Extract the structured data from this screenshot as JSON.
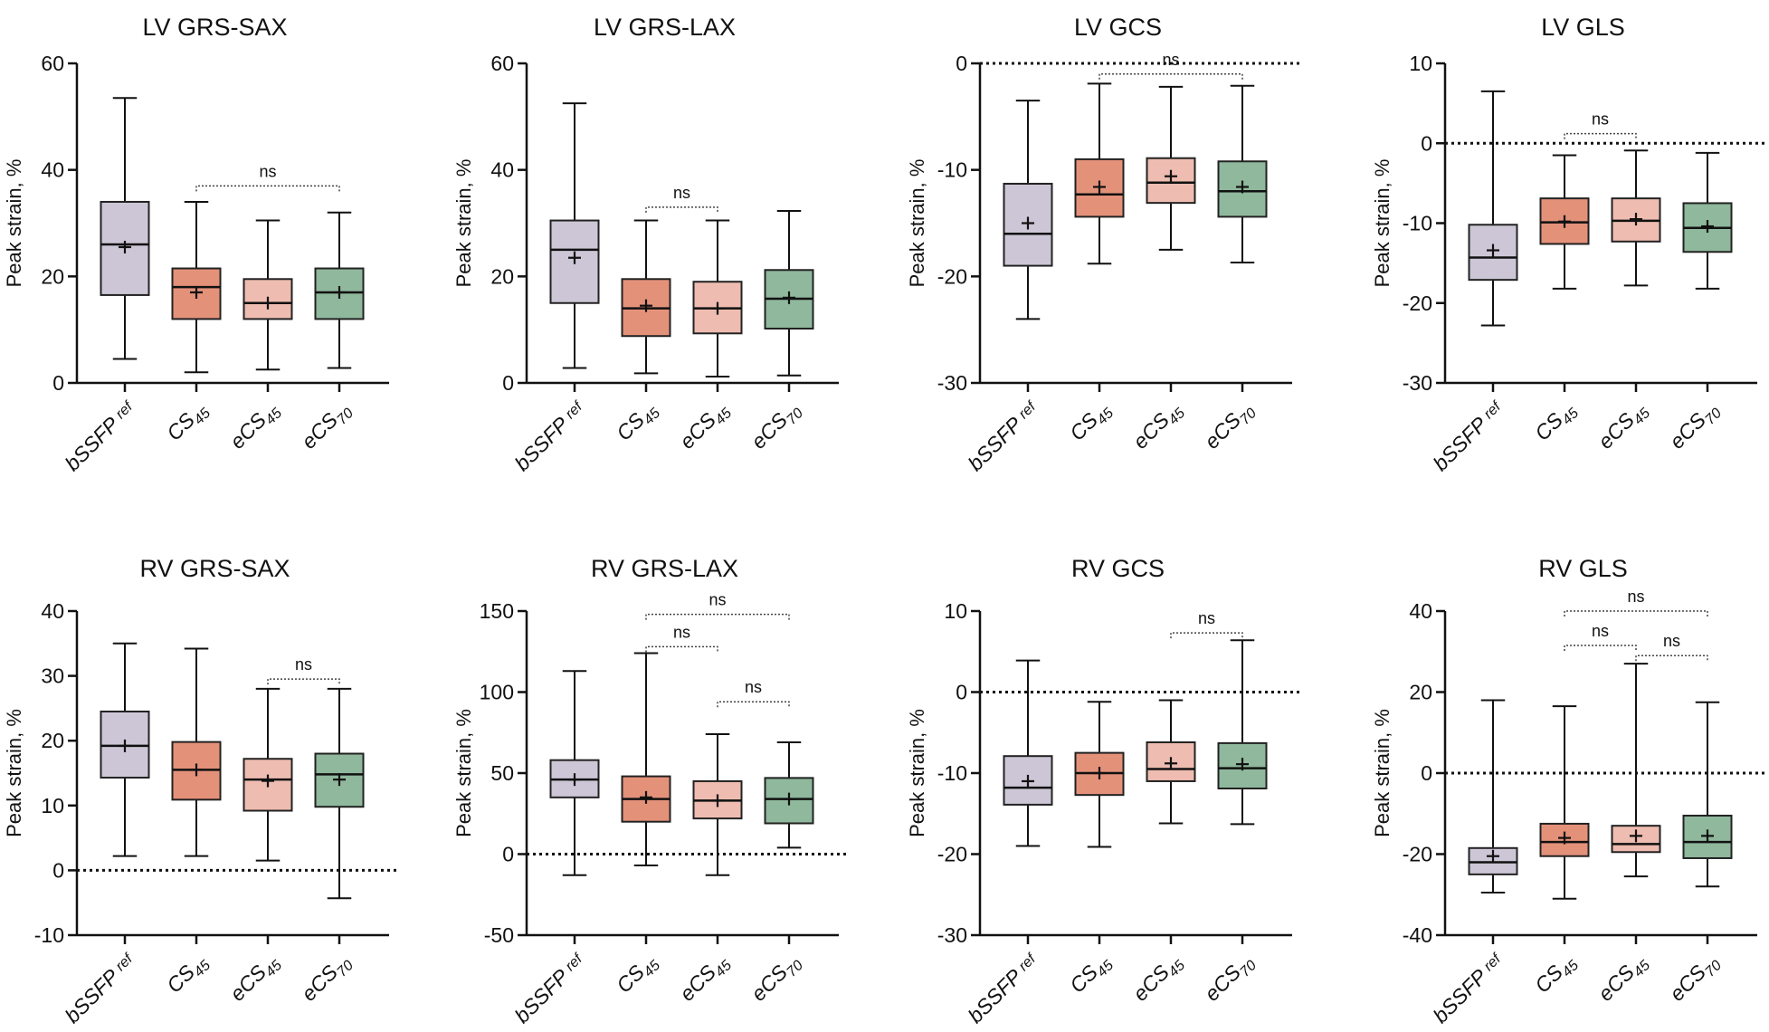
{
  "chart_data": [
    {
      "type": "box",
      "title": "LV GRS-SAX",
      "ylabel": "Peak strain, %",
      "ylim": [
        0,
        60
      ],
      "yticks": [
        0,
        20,
        40,
        60
      ],
      "refline": null,
      "categories": [
        {
          "main": "bSSFP",
          "sub": "ref"
        },
        {
          "main": "CS",
          "sub": "45"
        },
        {
          "main": "eCS",
          "sub": "45"
        },
        {
          "main": "eCS",
          "sub": "70"
        }
      ],
      "series": [
        {
          "min": 4.5,
          "q1": 16.5,
          "median": 26,
          "q3": 34,
          "max": 53.5,
          "mean": 25.5
        },
        {
          "min": 2,
          "q1": 12,
          "median": 18,
          "q3": 21.5,
          "max": 34,
          "mean": 17
        },
        {
          "min": 2.5,
          "q1": 12,
          "median": 15,
          "q3": 19.5,
          "max": 30.5,
          "mean": 15
        },
        {
          "min": 2.8,
          "q1": 12,
          "median": 17,
          "q3": 21.5,
          "max": 32,
          "mean": 17
        }
      ],
      "annotations": [
        {
          "from": 1,
          "to": 3,
          "y": 37,
          "text": "ns"
        }
      ]
    },
    {
      "type": "box",
      "title": "LV GRS-LAX",
      "ylabel": "Peak strain, %",
      "ylim": [
        0,
        60
      ],
      "yticks": [
        0,
        20,
        40,
        60
      ],
      "refline": null,
      "categories": [
        {
          "main": "bSSFP",
          "sub": "ref"
        },
        {
          "main": "CS",
          "sub": "45"
        },
        {
          "main": "eCS",
          "sub": "45"
        },
        {
          "main": "eCS",
          "sub": "70"
        }
      ],
      "series": [
        {
          "min": 2.8,
          "q1": 15,
          "median": 25,
          "q3": 30.5,
          "max": 52.5,
          "mean": 23.5
        },
        {
          "min": 1.8,
          "q1": 8.8,
          "median": 14,
          "q3": 19.5,
          "max": 30.5,
          "mean": 14.5
        },
        {
          "min": 1.2,
          "q1": 9.3,
          "median": 14,
          "q3": 19,
          "max": 30.5,
          "mean": 14
        },
        {
          "min": 1.4,
          "q1": 10.2,
          "median": 15.8,
          "q3": 21.2,
          "max": 32.3,
          "mean": 16
        }
      ],
      "annotations": [
        {
          "from": 1,
          "to": 2,
          "y": 33,
          "text": "ns"
        }
      ]
    },
    {
      "type": "box",
      "title": "LV GCS",
      "ylabel": "Peak strain, %",
      "ylim": [
        -30,
        0
      ],
      "yticks": [
        -30,
        -20,
        -10,
        0
      ],
      "refline": 0,
      "categories": [
        {
          "main": "bSSFP",
          "sub": "ref"
        },
        {
          "main": "CS",
          "sub": "45"
        },
        {
          "main": "eCS",
          "sub": "45"
        },
        {
          "main": "eCS",
          "sub": "70"
        }
      ],
      "series": [
        {
          "min": -24,
          "q1": -19,
          "median": -16,
          "q3": -11.3,
          "max": -3.5,
          "mean": -15
        },
        {
          "min": -18.8,
          "q1": -14.4,
          "median": -12.3,
          "q3": -9,
          "max": -1.9,
          "mean": -11.6
        },
        {
          "min": -17.5,
          "q1": -13.1,
          "median": -11.2,
          "q3": -8.9,
          "max": -2.2,
          "mean": -10.6
        },
        {
          "min": -18.7,
          "q1": -14.4,
          "median": -12,
          "q3": -9.2,
          "max": -2.1,
          "mean": -11.6
        }
      ],
      "annotations": [
        {
          "from": 1,
          "to": 3,
          "y": -1,
          "text": "ns"
        }
      ]
    },
    {
      "type": "box",
      "title": "LV GLS",
      "ylabel": "Peak strain, %",
      "ylim": [
        -30,
        10
      ],
      "yticks": [
        -30,
        -20,
        -10,
        0,
        10
      ],
      "refline": 0,
      "categories": [
        {
          "main": "bSSFP",
          "sub": "ref"
        },
        {
          "main": "CS",
          "sub": "45"
        },
        {
          "main": "eCS",
          "sub": "45"
        },
        {
          "main": "eCS",
          "sub": "70"
        }
      ],
      "series": [
        {
          "min": -22.8,
          "q1": -17.1,
          "median": -14.3,
          "q3": -10.2,
          "max": 6.5,
          "mean": -13.4
        },
        {
          "min": -18.2,
          "q1": -12.6,
          "median": -9.9,
          "q3": -6.9,
          "max": -1.5,
          "mean": -9.8
        },
        {
          "min": -17.8,
          "q1": -12.3,
          "median": -9.7,
          "q3": -6.9,
          "max": -0.9,
          "mean": -9.5
        },
        {
          "min": -18.2,
          "q1": -13.6,
          "median": -10.6,
          "q3": -7.5,
          "max": -1.2,
          "mean": -10.4
        }
      ],
      "annotations": [
        {
          "from": 1,
          "to": 2,
          "y": 1.2,
          "text": "ns"
        }
      ]
    },
    {
      "type": "box",
      "title": "RV GRS-SAX",
      "ylabel": "Peak strain, %",
      "ylim": [
        -10,
        40
      ],
      "yticks": [
        -10,
        0,
        10,
        20,
        30,
        40
      ],
      "refline": 0,
      "categories": [
        {
          "main": "bSSFP",
          "sub": "ref"
        },
        {
          "main": "CS",
          "sub": "45"
        },
        {
          "main": "eCS",
          "sub": "45"
        },
        {
          "main": "eCS",
          "sub": "70"
        }
      ],
      "series": [
        {
          "min": 2.2,
          "q1": 14.3,
          "median": 19.2,
          "q3": 24.5,
          "max": 35,
          "mean": 19.2
        },
        {
          "min": 2.2,
          "q1": 10.9,
          "median": 15.5,
          "q3": 19.8,
          "max": 34.2,
          "mean": 15.5
        },
        {
          "min": 1.5,
          "q1": 9.2,
          "median": 14,
          "q3": 17.2,
          "max": 28,
          "mean": 13.8
        },
        {
          "min": -4.3,
          "q1": 9.8,
          "median": 14.8,
          "q3": 18,
          "max": 28,
          "mean": 14
        }
      ],
      "annotations": [
        {
          "from": 2,
          "to": 3,
          "y": 29.5,
          "text": "ns"
        }
      ]
    },
    {
      "type": "box",
      "title": "RV GRS-LAX",
      "ylabel": "Peak strain, %",
      "ylim": [
        -50,
        150
      ],
      "yticks": [
        -50,
        0,
        50,
        100,
        150
      ],
      "refline": 0,
      "categories": [
        {
          "main": "bSSFP",
          "sub": "ref"
        },
        {
          "main": "CS",
          "sub": "45"
        },
        {
          "main": "eCS",
          "sub": "45"
        },
        {
          "main": "eCS",
          "sub": "70"
        }
      ],
      "series": [
        {
          "min": -13,
          "q1": 35,
          "median": 46,
          "q3": 58,
          "max": 113,
          "mean": 46
        },
        {
          "min": -7,
          "q1": 20,
          "median": 34,
          "q3": 48,
          "max": 124,
          "mean": 35
        },
        {
          "min": -13,
          "q1": 22,
          "median": 33,
          "q3": 45,
          "max": 74,
          "mean": 33
        },
        {
          "min": 4,
          "q1": 19,
          "median": 34,
          "q3": 47,
          "max": 69,
          "mean": 34
        }
      ],
      "annotations": [
        {
          "from": 1,
          "to": 3,
          "y": 148,
          "text": "ns"
        },
        {
          "from": 1,
          "to": 2,
          "y": 128,
          "text": "ns"
        },
        {
          "from": 2,
          "to": 3,
          "y": 94,
          "text": "ns"
        }
      ]
    },
    {
      "type": "box",
      "title": "RV GCS",
      "ylabel": "Peak strain, %",
      "ylim": [
        -30,
        10
      ],
      "yticks": [
        -30,
        -20,
        -10,
        0,
        10
      ],
      "refline": 0,
      "categories": [
        {
          "main": "bSSFP",
          "sub": "ref"
        },
        {
          "main": "CS",
          "sub": "45"
        },
        {
          "main": "eCS",
          "sub": "45"
        },
        {
          "main": "eCS",
          "sub": "70"
        }
      ],
      "series": [
        {
          "min": -19,
          "q1": -13.9,
          "median": -11.8,
          "q3": -7.9,
          "max": 3.9,
          "mean": -11
        },
        {
          "min": -19.1,
          "q1": -12.7,
          "median": -10,
          "q3": -7.5,
          "max": -1.2,
          "mean": -10
        },
        {
          "min": -16.2,
          "q1": -11,
          "median": -9.5,
          "q3": -6.2,
          "max": -1,
          "mean": -8.8
        },
        {
          "min": -16.3,
          "q1": -11.9,
          "median": -9.4,
          "q3": -6.3,
          "max": 6.4,
          "mean": -8.9
        }
      ],
      "annotations": [
        {
          "from": 2,
          "to": 3,
          "y": 7.3,
          "text": "ns"
        }
      ]
    },
    {
      "type": "box",
      "title": "RV GLS",
      "ylabel": "Peak strain, %",
      "ylim": [
        -40,
        40
      ],
      "yticks": [
        -40,
        -20,
        0,
        20,
        40
      ],
      "refline": 0,
      "categories": [
        {
          "main": "bSSFP",
          "sub": "ref"
        },
        {
          "main": "CS",
          "sub": "45"
        },
        {
          "main": "eCS",
          "sub": "45"
        },
        {
          "main": "eCS",
          "sub": "70"
        }
      ],
      "series": [
        {
          "min": -29.5,
          "q1": -25,
          "median": -22,
          "q3": -18.5,
          "max": 18,
          "mean": -20.5
        },
        {
          "min": -31,
          "q1": -20.5,
          "median": -17,
          "q3": -12.5,
          "max": 16.5,
          "mean": -16
        },
        {
          "min": -25.5,
          "q1": -19.5,
          "median": -17.5,
          "q3": -13,
          "max": 27,
          "mean": -15.5
        },
        {
          "min": -28,
          "q1": -21,
          "median": -17,
          "q3": -10.5,
          "max": 17.5,
          "mean": -15.5
        }
      ],
      "annotations": [
        {
          "from": 1,
          "to": 3,
          "y": 40,
          "text": "ns"
        },
        {
          "from": 1,
          "to": 2,
          "y": 31.5,
          "text": "ns"
        },
        {
          "from": 2,
          "to": 3,
          "y": 29,
          "text": "ns"
        }
      ]
    }
  ],
  "colors": [
    "#cdc6d6",
    "#e4917a",
    "#eebcb0",
    "#8fb89c"
  ]
}
